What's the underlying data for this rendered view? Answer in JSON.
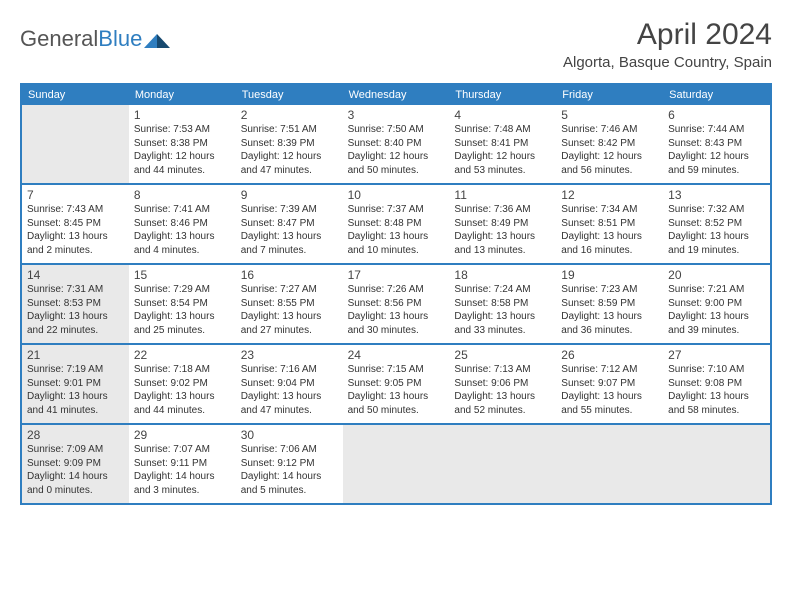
{
  "logo": {
    "word1": "General",
    "word2": "Blue"
  },
  "title": "April 2024",
  "location": "Algorta, Basque Country, Spain",
  "colors": {
    "accent": "#2f7ec0",
    "shaded": "#e9e9e9",
    "text": "#333333",
    "bg": "#ffffff"
  },
  "day_headers": [
    "Sunday",
    "Monday",
    "Tuesday",
    "Wednesday",
    "Thursday",
    "Friday",
    "Saturday"
  ],
  "weeks": [
    [
      {
        "empty": true
      },
      {
        "day": "1",
        "sunrise": "Sunrise: 7:53 AM",
        "sunset": "Sunset: 8:38 PM",
        "dl1": "Daylight: 12 hours",
        "dl2": "and 44 minutes."
      },
      {
        "day": "2",
        "sunrise": "Sunrise: 7:51 AM",
        "sunset": "Sunset: 8:39 PM",
        "dl1": "Daylight: 12 hours",
        "dl2": "and 47 minutes."
      },
      {
        "day": "3",
        "sunrise": "Sunrise: 7:50 AM",
        "sunset": "Sunset: 8:40 PM",
        "dl1": "Daylight: 12 hours",
        "dl2": "and 50 minutes."
      },
      {
        "day": "4",
        "sunrise": "Sunrise: 7:48 AM",
        "sunset": "Sunset: 8:41 PM",
        "dl1": "Daylight: 12 hours",
        "dl2": "and 53 minutes."
      },
      {
        "day": "5",
        "sunrise": "Sunrise: 7:46 AM",
        "sunset": "Sunset: 8:42 PM",
        "dl1": "Daylight: 12 hours",
        "dl2": "and 56 minutes."
      },
      {
        "day": "6",
        "sunrise": "Sunrise: 7:44 AM",
        "sunset": "Sunset: 8:43 PM",
        "dl1": "Daylight: 12 hours",
        "dl2": "and 59 minutes."
      }
    ],
    [
      {
        "day": "7",
        "sunrise": "Sunrise: 7:43 AM",
        "sunset": "Sunset: 8:45 PM",
        "dl1": "Daylight: 13 hours",
        "dl2": "and 2 minutes."
      },
      {
        "day": "8",
        "sunrise": "Sunrise: 7:41 AM",
        "sunset": "Sunset: 8:46 PM",
        "dl1": "Daylight: 13 hours",
        "dl2": "and 4 minutes."
      },
      {
        "day": "9",
        "sunrise": "Sunrise: 7:39 AM",
        "sunset": "Sunset: 8:47 PM",
        "dl1": "Daylight: 13 hours",
        "dl2": "and 7 minutes."
      },
      {
        "day": "10",
        "sunrise": "Sunrise: 7:37 AM",
        "sunset": "Sunset: 8:48 PM",
        "dl1": "Daylight: 13 hours",
        "dl2": "and 10 minutes."
      },
      {
        "day": "11",
        "sunrise": "Sunrise: 7:36 AM",
        "sunset": "Sunset: 8:49 PM",
        "dl1": "Daylight: 13 hours",
        "dl2": "and 13 minutes."
      },
      {
        "day": "12",
        "sunrise": "Sunrise: 7:34 AM",
        "sunset": "Sunset: 8:51 PM",
        "dl1": "Daylight: 13 hours",
        "dl2": "and 16 minutes."
      },
      {
        "day": "13",
        "sunrise": "Sunrise: 7:32 AM",
        "sunset": "Sunset: 8:52 PM",
        "dl1": "Daylight: 13 hours",
        "dl2": "and 19 minutes."
      }
    ],
    [
      {
        "day": "14",
        "shaded": true,
        "sunrise": "Sunrise: 7:31 AM",
        "sunset": "Sunset: 8:53 PM",
        "dl1": "Daylight: 13 hours",
        "dl2": "and 22 minutes."
      },
      {
        "day": "15",
        "sunrise": "Sunrise: 7:29 AM",
        "sunset": "Sunset: 8:54 PM",
        "dl1": "Daylight: 13 hours",
        "dl2": "and 25 minutes."
      },
      {
        "day": "16",
        "sunrise": "Sunrise: 7:27 AM",
        "sunset": "Sunset: 8:55 PM",
        "dl1": "Daylight: 13 hours",
        "dl2": "and 27 minutes."
      },
      {
        "day": "17",
        "sunrise": "Sunrise: 7:26 AM",
        "sunset": "Sunset: 8:56 PM",
        "dl1": "Daylight: 13 hours",
        "dl2": "and 30 minutes."
      },
      {
        "day": "18",
        "sunrise": "Sunrise: 7:24 AM",
        "sunset": "Sunset: 8:58 PM",
        "dl1": "Daylight: 13 hours",
        "dl2": "and 33 minutes."
      },
      {
        "day": "19",
        "sunrise": "Sunrise: 7:23 AM",
        "sunset": "Sunset: 8:59 PM",
        "dl1": "Daylight: 13 hours",
        "dl2": "and 36 minutes."
      },
      {
        "day": "20",
        "sunrise": "Sunrise: 7:21 AM",
        "sunset": "Sunset: 9:00 PM",
        "dl1": "Daylight: 13 hours",
        "dl2": "and 39 minutes."
      }
    ],
    [
      {
        "day": "21",
        "shaded": true,
        "sunrise": "Sunrise: 7:19 AM",
        "sunset": "Sunset: 9:01 PM",
        "dl1": "Daylight: 13 hours",
        "dl2": "and 41 minutes."
      },
      {
        "day": "22",
        "sunrise": "Sunrise: 7:18 AM",
        "sunset": "Sunset: 9:02 PM",
        "dl1": "Daylight: 13 hours",
        "dl2": "and 44 minutes."
      },
      {
        "day": "23",
        "sunrise": "Sunrise: 7:16 AM",
        "sunset": "Sunset: 9:04 PM",
        "dl1": "Daylight: 13 hours",
        "dl2": "and 47 minutes."
      },
      {
        "day": "24",
        "sunrise": "Sunrise: 7:15 AM",
        "sunset": "Sunset: 9:05 PM",
        "dl1": "Daylight: 13 hours",
        "dl2": "and 50 minutes."
      },
      {
        "day": "25",
        "sunrise": "Sunrise: 7:13 AM",
        "sunset": "Sunset: 9:06 PM",
        "dl1": "Daylight: 13 hours",
        "dl2": "and 52 minutes."
      },
      {
        "day": "26",
        "sunrise": "Sunrise: 7:12 AM",
        "sunset": "Sunset: 9:07 PM",
        "dl1": "Daylight: 13 hours",
        "dl2": "and 55 minutes."
      },
      {
        "day": "27",
        "sunrise": "Sunrise: 7:10 AM",
        "sunset": "Sunset: 9:08 PM",
        "dl1": "Daylight: 13 hours",
        "dl2": "and 58 minutes."
      }
    ],
    [
      {
        "day": "28",
        "shaded": true,
        "sunrise": "Sunrise: 7:09 AM",
        "sunset": "Sunset: 9:09 PM",
        "dl1": "Daylight: 14 hours",
        "dl2": "and 0 minutes."
      },
      {
        "day": "29",
        "sunrise": "Sunrise: 7:07 AM",
        "sunset": "Sunset: 9:11 PM",
        "dl1": "Daylight: 14 hours",
        "dl2": "and 3 minutes."
      },
      {
        "day": "30",
        "sunrise": "Sunrise: 7:06 AM",
        "sunset": "Sunset: 9:12 PM",
        "dl1": "Daylight: 14 hours",
        "dl2": "and 5 minutes."
      },
      {
        "empty": true
      },
      {
        "empty": true
      },
      {
        "empty": true
      },
      {
        "empty": true
      }
    ]
  ]
}
